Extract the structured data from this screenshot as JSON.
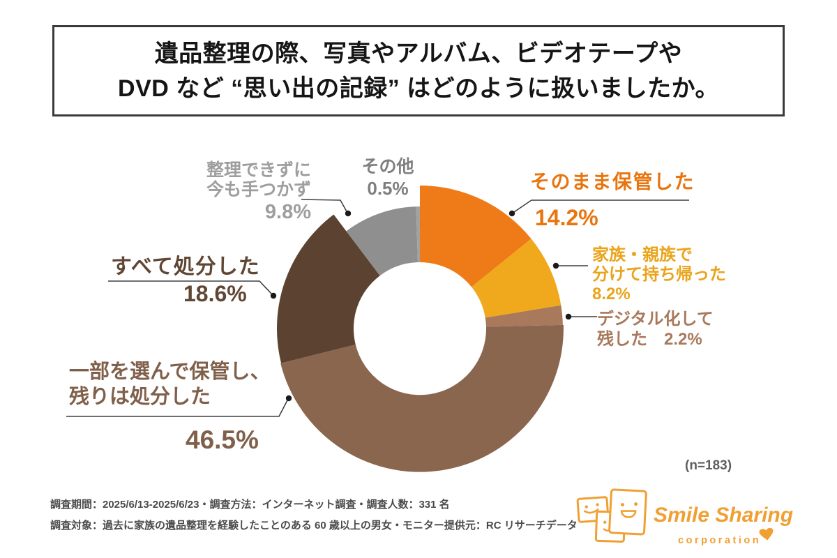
{
  "title": {
    "line1": "遺品整理の際、写真やアルバム、ビデオテープや",
    "line2": "DVD など “思い出の記録” はどのように扱いましたか。"
  },
  "chart_data": {
    "type": "pie",
    "subtype": "donut",
    "title": "遺品整理の際、写真やアルバム、ビデオテープや DVD など “思い出の記録” はどのように扱いましたか。",
    "unit": "%",
    "sample_label": "(n=183)",
    "start_angle_deg": 0,
    "direction": "clockwise",
    "inner_radius_px": 95,
    "segments": [
      {
        "label": "そのまま保管した",
        "value": 14.2,
        "color": "#EE7B17",
        "radius": 205
      },
      {
        "label": "家族・親族で分けて持ち帰った",
        "value": 8.2,
        "color": "#F0A81C",
        "radius": 205
      },
      {
        "label": "デジタル化して残した",
        "value": 2.2,
        "color": "#A8795B",
        "radius": 205
      },
      {
        "label": "一部を選んで保管し、残りは処分した",
        "value": 46.5,
        "color": "#8A664F",
        "radius": 206
      },
      {
        "label": "すべて処分した",
        "value": 18.6,
        "color": "#5C4230",
        "radius": 205
      },
      {
        "label": "整理できずに今も手つかず",
        "value": 9.8,
        "color": "#8F8F8F",
        "radius": 175
      },
      {
        "label": "その他",
        "value": 0.5,
        "color": "#A2A2A2",
        "radius": 175
      }
    ]
  },
  "callouts": {
    "sonomama": {
      "lines": [
        "そのまま保管した"
      ],
      "pct": "14.2%"
    },
    "kazoku": {
      "lines": [
        "家族・親族で",
        "分けて持ち帰った"
      ],
      "pct": "8.2%"
    },
    "digital": {
      "lines": [
        "デジタル化して",
        "残した　2.2%"
      ]
    },
    "ichibu": {
      "lines": [
        "一部を選んで保管し、",
        "残りは処分した"
      ],
      "pct": "46.5%"
    },
    "subete": {
      "lines": [
        "すべて処分した"
      ],
      "pct": "18.6%"
    },
    "seiri": {
      "lines": [
        "整理できずに",
        "今も手つかず"
      ],
      "pct": "9.8%"
    },
    "sonota": {
      "lines": [
        "その他"
      ],
      "pct": "0.5%"
    }
  },
  "annotations": {
    "n_label": "(n=183)"
  },
  "footer": {
    "line1": "調査期間：2025/6/13-2025/6/23・調査方法：インターネット調査・調査人数：331 名",
    "line2": "調査対象：過去に家族の遺品整理を経験したことのある 60 歳以上の男女・モニター提供元：RC リサーチデータ"
  },
  "logo": {
    "brand": "Smile Sharing",
    "sub": "corporation",
    "color": "#F0A033"
  }
}
